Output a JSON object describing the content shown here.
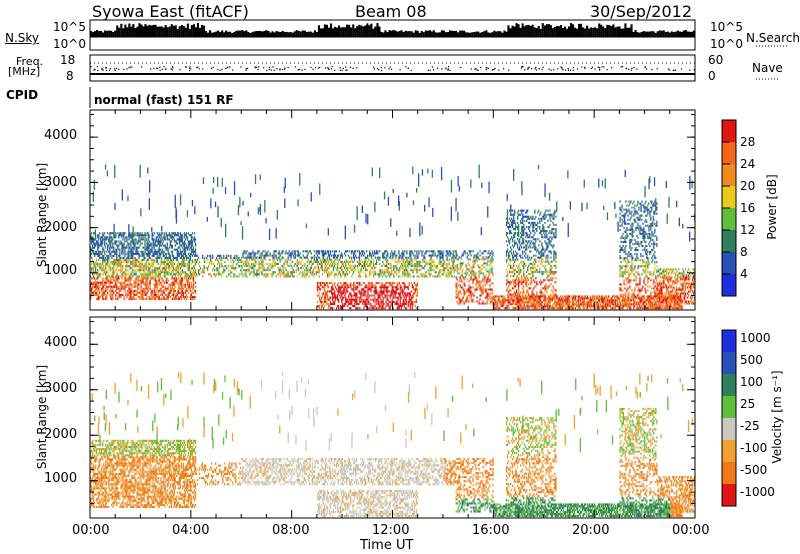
{
  "header": {
    "station": "Syowa East (fitACF)",
    "beam": "Beam 08",
    "date": "30/Sep/2012"
  },
  "top_panels": {
    "nsky_label": "N.Sky",
    "nsky_ticks": [
      "10^5",
      "10^0"
    ],
    "nsearch_label": "N.Search",
    "nsearch_ticks": [
      "10^5",
      "10^0"
    ],
    "freq_label_line1": "Freq.",
    "freq_label_line2": "[MHz]",
    "freq_ticks": [
      "18",
      "8"
    ],
    "nave_label": "Nave",
    "nave_ticks": [
      "60",
      "0"
    ],
    "cpid_label": "CPID",
    "cpid_text": "normal (fast) 151 RF"
  },
  "chart_data": [
    {
      "type": "heatmap",
      "name": "power-panel",
      "ylabel": "Slant Range [km]",
      "yticks": [
        1000,
        2000,
        3000,
        4000
      ],
      "ylim": [
        180,
        4600
      ],
      "xlim": [
        0,
        24
      ],
      "colorbar": {
        "label": "Power [dB]",
        "ticks": [
          "4",
          "8",
          "12",
          "16",
          "20",
          "24",
          "28"
        ],
        "colors": [
          "#1e2dde",
          "#2a50b8",
          "#2f7f5c",
          "#5fbf3a",
          "#e9c91c",
          "#f08a1a",
          "#f2651a",
          "#e21515"
        ]
      }
    },
    {
      "type": "heatmap",
      "name": "velocity-panel",
      "ylabel": "Slant Range [km]",
      "yticks": [
        1000,
        2000,
        3000,
        4000
      ],
      "ylim": [
        180,
        4600
      ],
      "xlim": [
        0,
        24
      ],
      "xlabel": "Time UT",
      "xticks": [
        "00:00",
        "04:00",
        "08:00",
        "12:00",
        "16:00",
        "20:00",
        "00:00"
      ],
      "colorbar": {
        "label": "Velocity [m s⁻¹]",
        "ticks": [
          "1000",
          "500",
          "100",
          "25",
          "-25",
          "-100",
          "-500",
          "-1000"
        ],
        "colors": [
          "#1e2dde",
          "#2a50b8",
          "#2f7f5c",
          "#5fbf3a",
          "#c9c9c0",
          "#f2a030",
          "#f07a1a",
          "#e21515"
        ]
      }
    }
  ]
}
